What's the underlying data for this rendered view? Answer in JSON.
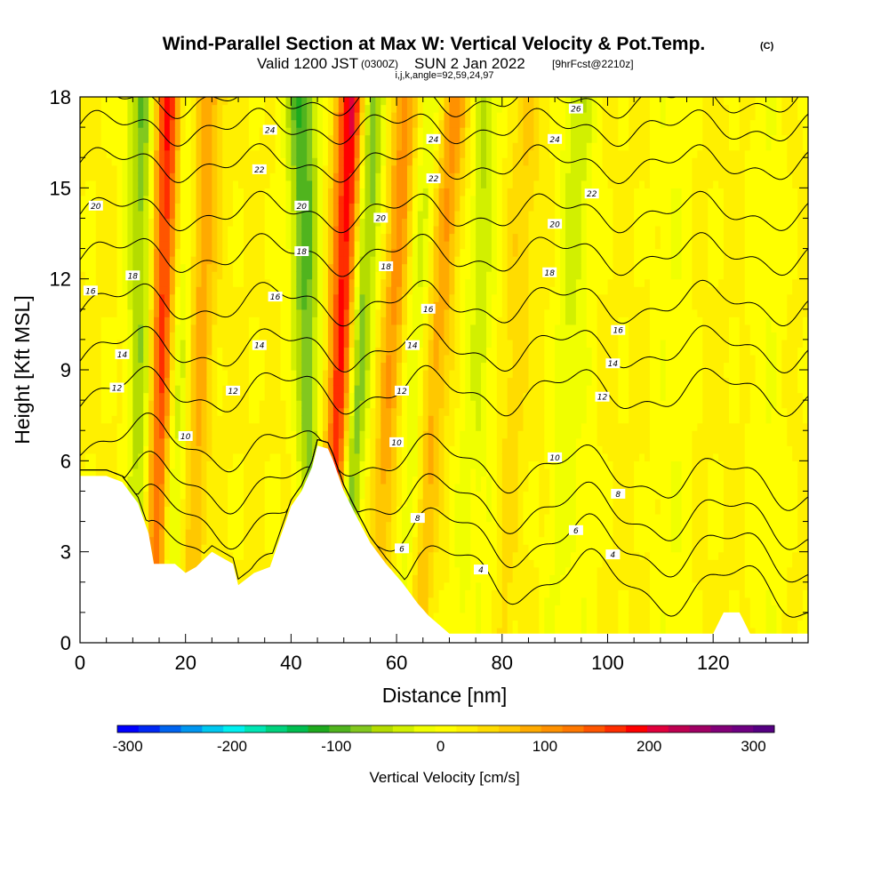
{
  "titles": {
    "main": "Wind-Parallel Section at Max W: Vertical Velocity & Pot.Temp.",
    "copyright": "(C)",
    "valid_prefix": "Valid 1200 JST",
    "valid_zulu": "(0300Z)",
    "valid_date": "SUN 2 Jan 2022",
    "forecast": "[9hrFcst@2210z]",
    "indices": "i,j,k,angle=92,59,24,97"
  },
  "chart_data": {
    "type": "heatmap",
    "xlabel": "Distance [nm]",
    "ylabel": "Height [Kft MSL]",
    "xlim": [
      0,
      138
    ],
    "ylim": [
      0,
      18
    ],
    "x_ticks": [
      "0",
      "20",
      "40",
      "60",
      "80",
      "100",
      "120"
    ],
    "x_tick_values": [
      0,
      20,
      40,
      60,
      80,
      100,
      120
    ],
    "y_ticks": [
      "0",
      "3",
      "6",
      "9",
      "12",
      "15",
      "18"
    ],
    "y_tick_values": [
      0,
      3,
      6,
      9,
      12,
      15,
      18
    ],
    "field": "Vertical Velocity",
    "contour_field": "Potential Temperature",
    "colorbar": {
      "title": "Vertical Velocity [cm/s]",
      "labels": [
        "-300",
        "-200",
        "-100",
        "0",
        "100",
        "200",
        "300"
      ],
      "label_values": [
        -300,
        -200,
        -100,
        0,
        100,
        200,
        300
      ],
      "range": [
        -310,
        320
      ],
      "colors": [
        "#0000ff",
        "#0028f5",
        "#0064f0",
        "#0096f0",
        "#00c8f0",
        "#00f0f0",
        "#00e6b4",
        "#00d27d",
        "#00be50",
        "#1eaa1e",
        "#50b41e",
        "#82c81e",
        "#b4dc00",
        "#d2f000",
        "#f0ff00",
        "#ffff00",
        "#fff000",
        "#ffdc00",
        "#ffc800",
        "#ffaa00",
        "#ff9100",
        "#ff7800",
        "#ff5500",
        "#ff2d00",
        "#ff0000",
        "#e1003c",
        "#be0050",
        "#a00064",
        "#820078",
        "#6e0082",
        "#550082"
      ]
    },
    "updraft_bands": [
      {
        "x_top": 17,
        "x_bottom": 14,
        "w_peak": 200
      },
      {
        "x_top": 24,
        "x_bottom": 21,
        "w_peak": 90
      },
      {
        "x_top": 52,
        "x_bottom": 47,
        "w_peak": 230
      },
      {
        "x_top": 62,
        "x_bottom": 56,
        "w_peak": 100
      },
      {
        "x_top": 71,
        "x_bottom": 64,
        "w_peak": 90
      },
      {
        "x_top": 85,
        "x_bottom": 80,
        "w_peak": 40
      }
    ],
    "downdraft_bands": [
      {
        "x_top": 12,
        "x_bottom": 11,
        "w_peak": -110
      },
      {
        "x_top": 20,
        "x_bottom": 17,
        "w_peak": -90
      },
      {
        "x_top": 42,
        "x_bottom": 44,
        "w_peak": -130
      },
      {
        "x_top": 55,
        "x_bottom": 50,
        "w_peak": -150
      },
      {
        "x_top": 66,
        "x_bottom": 61,
        "w_peak": -60
      },
      {
        "x_top": 77,
        "x_bottom": 72,
        "w_peak": -50
      },
      {
        "x_top": 95,
        "x_bottom": 89,
        "w_peak": -40
      }
    ],
    "terrain": [
      [
        0,
        5.5
      ],
      [
        5,
        5.5
      ],
      [
        8,
        5.3
      ],
      [
        11,
        4.6
      ],
      [
        13,
        3.6
      ],
      [
        14,
        2.6
      ],
      [
        18,
        2.6
      ],
      [
        20,
        2.3
      ],
      [
        22,
        2.5
      ],
      [
        25,
        3.0
      ],
      [
        29,
        2.6
      ],
      [
        30,
        1.9
      ],
      [
        33,
        2.3
      ],
      [
        36,
        2.5
      ],
      [
        38,
        3.5
      ],
      [
        40,
        4.5
      ],
      [
        42,
        5.0
      ],
      [
        44,
        5.8
      ],
      [
        45,
        6.5
      ],
      [
        47,
        6.4
      ],
      [
        48,
        6.0
      ],
      [
        50,
        5.0
      ],
      [
        52,
        4.3
      ],
      [
        55,
        3.3
      ],
      [
        58,
        2.6
      ],
      [
        61,
        2.0
      ],
      [
        64,
        1.3
      ],
      [
        66,
        0.9
      ],
      [
        68,
        0.6
      ],
      [
        70,
        0.3
      ],
      [
        120,
        0.3
      ],
      [
        122,
        1.0
      ],
      [
        125,
        1.0
      ],
      [
        127,
        0.3
      ],
      [
        138,
        0.3
      ]
    ],
    "theta_contours": [
      {
        "label": "4",
        "level_kft": 2.5,
        "label_pos": [
          [
            76,
            2.4
          ],
          [
            101,
            2.9
          ]
        ]
      },
      {
        "label": "6",
        "level_kft": 3.7,
        "label_pos": [
          [
            61,
            3.1
          ],
          [
            94,
            3.7
          ]
        ]
      },
      {
        "label": "8",
        "level_kft": 4.8,
        "label_pos": [
          [
            64,
            4.1
          ],
          [
            102,
            4.9
          ]
        ]
      },
      {
        "label": "10",
        "level_kft": 6.1,
        "label_pos": [
          [
            20,
            6.8
          ],
          [
            60,
            6.6
          ],
          [
            90,
            6.1
          ]
        ]
      },
      {
        "label": "12",
        "level_kft": 8.3,
        "label_pos": [
          [
            7,
            8.4
          ],
          [
            29,
            8.3
          ],
          [
            61,
            8.3
          ],
          [
            99,
            8.1
          ]
        ]
      },
      {
        "label": "14",
        "level_kft": 9.7,
        "label_pos": [
          [
            8,
            9.5
          ],
          [
            34,
            9.8
          ],
          [
            63,
            9.8
          ],
          [
            101,
            9.2
          ]
        ]
      },
      {
        "label": "16",
        "level_kft": 11.2,
        "label_pos": [
          [
            2,
            11.6
          ],
          [
            37,
            11.4
          ],
          [
            66,
            11.0
          ],
          [
            102,
            10.3
          ]
        ]
      },
      {
        "label": "18",
        "level_kft": 12.8,
        "label_pos": [
          [
            10,
            12.1
          ],
          [
            42,
            12.9
          ],
          [
            58,
            12.4
          ],
          [
            89,
            12.2
          ]
        ]
      },
      {
        "label": "20",
        "level_kft": 14.2,
        "label_pos": [
          [
            3,
            14.4
          ],
          [
            42,
            14.4
          ],
          [
            57,
            14.0
          ],
          [
            90,
            13.8
          ]
        ]
      },
      {
        "label": "22",
        "level_kft": 15.8,
        "label_pos": [
          [
            34,
            15.6
          ],
          [
            67,
            15.3
          ],
          [
            97,
            14.8
          ]
        ]
      },
      {
        "label": "24",
        "level_kft": 17.0,
        "label_pos": [
          [
            36,
            16.9
          ],
          [
            67,
            16.6
          ],
          [
            90,
            16.6
          ]
        ]
      },
      {
        "label": "26",
        "level_kft": 17.9,
        "label_pos": [
          [
            94,
            17.6
          ]
        ]
      }
    ]
  }
}
